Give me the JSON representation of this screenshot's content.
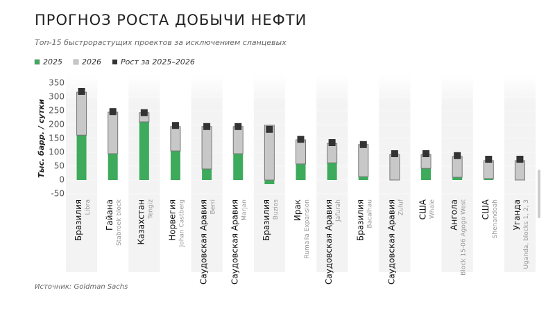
{
  "chart_data": {
    "type": "bar",
    "title": "Прогноз роста добычи нефти",
    "subtitle": "Топ-15 быстрорастущих проектов за исключением сланцевых",
    "ylabel": "Тыс. барр. / сутки",
    "source": "Источник: Goldman Sachs",
    "categories": [
      "Бразилия",
      "Гайана",
      "Казахстан",
      "Норвегия",
      "Саудовская Аравия",
      "Саудовская Аравия",
      "Бразилия",
      "Ирак",
      "Саудовская Аравия",
      "Бразилия",
      "Саудовская Аравия",
      "США",
      "Ангола",
      "США",
      "Уганда"
    ],
    "projects": [
      "Libra",
      "Stabroek block",
      "Tengiz",
      "Johan Castberg",
      "Berri",
      "Marjan",
      "Buzios",
      "Rumaila Expansion",
      "Jafurah",
      "Bacalhau",
      "Zuluf",
      "Whale",
      "Block 15-06 Agogo West",
      "Shenandoah",
      "Uganda, blocks 1, 2, 3"
    ],
    "series": [
      {
        "name": "2025",
        "color": "#3daa5c",
        "values": [
          162,
          95,
          210,
          105,
          40,
          95,
          -15,
          58,
          62,
          12,
          0,
          42,
          10,
          5,
          0
        ]
      },
      {
        "name": "2026",
        "color": "#c8c8c8",
        "values": [
          155,
          150,
          33,
          88,
          153,
          98,
          198,
          87,
          70,
          116,
          92,
          50,
          75,
          65,
          70
        ]
      },
      {
        "name": "Рост за 2025–2026",
        "color": "#333333",
        "mark": "square",
        "values": [
          320,
          247,
          243,
          197,
          193,
          193,
          183,
          147,
          135,
          128,
          95,
          95,
          88,
          75,
          75
        ]
      }
    ],
    "ylim": [
      -50,
      350
    ],
    "yticks": [
      -50,
      0,
      50,
      100,
      150,
      200,
      250,
      300,
      350
    ]
  }
}
